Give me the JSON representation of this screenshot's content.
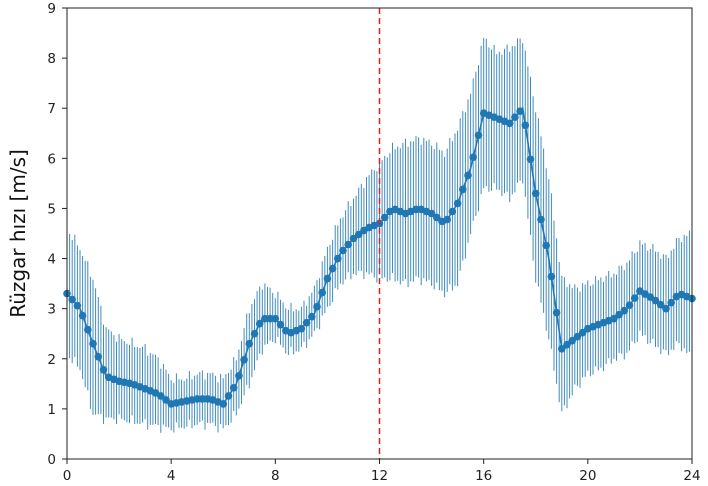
{
  "chart_data": {
    "type": "line",
    "title": "",
    "xlabel": "",
    "ylabel": "Rüzgar hızı [m/s]",
    "xlim": [
      0,
      24
    ],
    "ylim": [
      0,
      9
    ],
    "xticks": [
      "0",
      "4",
      "8",
      "12",
      "16",
      "20",
      "24"
    ],
    "yticks": [
      "0",
      "1",
      "2",
      "3",
      "4",
      "5",
      "6",
      "7",
      "8",
      "9"
    ],
    "grid": false,
    "legend": "none",
    "series": [
      {
        "color": "#1f77b4",
        "x": [
          0,
          0.5,
          1,
          1.5,
          2,
          2.5,
          3,
          3.5,
          4,
          4.5,
          5,
          5.5,
          6,
          6.5,
          7,
          7.5,
          8,
          8.5,
          9,
          9.5,
          10,
          10.5,
          11,
          11.5,
          12,
          12.5,
          13,
          13.5,
          14,
          14.5,
          15,
          15.5,
          16,
          16.5,
          17,
          17.5,
          18,
          18.5,
          19,
          19.5,
          20,
          20.5,
          21,
          21.5,
          22,
          22.5,
          23,
          23.5,
          24
        ],
        "y": [
          3.3,
          3.0,
          2.3,
          1.65,
          1.55,
          1.5,
          1.4,
          1.3,
          1.1,
          1.15,
          1.2,
          1.2,
          1.1,
          1.5,
          2.3,
          2.8,
          2.8,
          2.5,
          2.6,
          2.9,
          3.6,
          4.1,
          4.4,
          4.6,
          4.7,
          5.0,
          4.9,
          5.0,
          4.9,
          4.7,
          5.1,
          5.8,
          6.9,
          6.8,
          6.7,
          7.0,
          5.3,
          4.0,
          2.2,
          2.4,
          2.6,
          2.7,
          2.8,
          3.0,
          3.35,
          3.2,
          3.0,
          3.3,
          3.2
        ],
        "y_low": [
          2.1,
          1.8,
          0.9,
          0.8,
          0.8,
          0.75,
          0.7,
          0.65,
          0.6,
          0.65,
          0.7,
          0.7,
          0.6,
          0.9,
          1.5,
          2.2,
          2.4,
          2.1,
          2.2,
          2.5,
          3.0,
          3.5,
          3.7,
          3.7,
          3.6,
          3.6,
          3.5,
          3.6,
          3.5,
          3.3,
          3.5,
          4.5,
          5.4,
          5.4,
          5.2,
          5.6,
          3.6,
          2.4,
          0.9,
          1.4,
          1.7,
          1.8,
          2.0,
          2.1,
          2.5,
          2.3,
          2.1,
          2.3,
          2.0
        ],
        "y_high": [
          4.6,
          4.2,
          3.6,
          2.6,
          2.4,
          2.3,
          2.2,
          2.0,
          1.6,
          1.6,
          1.7,
          1.7,
          1.6,
          2.0,
          3.0,
          3.5,
          3.3,
          3.0,
          3.0,
          3.4,
          4.2,
          4.8,
          5.2,
          5.6,
          5.9,
          6.2,
          6.3,
          6.4,
          6.3,
          6.1,
          6.6,
          7.3,
          8.4,
          8.1,
          8.2,
          8.4,
          7.0,
          5.6,
          3.6,
          3.4,
          3.5,
          3.6,
          3.7,
          3.9,
          4.3,
          4.2,
          4.0,
          4.4,
          4.5
        ]
      }
    ],
    "reference_lines": [
      {
        "axis": "x",
        "value": 12,
        "style": "dashed",
        "color": "#e02020"
      }
    ]
  }
}
